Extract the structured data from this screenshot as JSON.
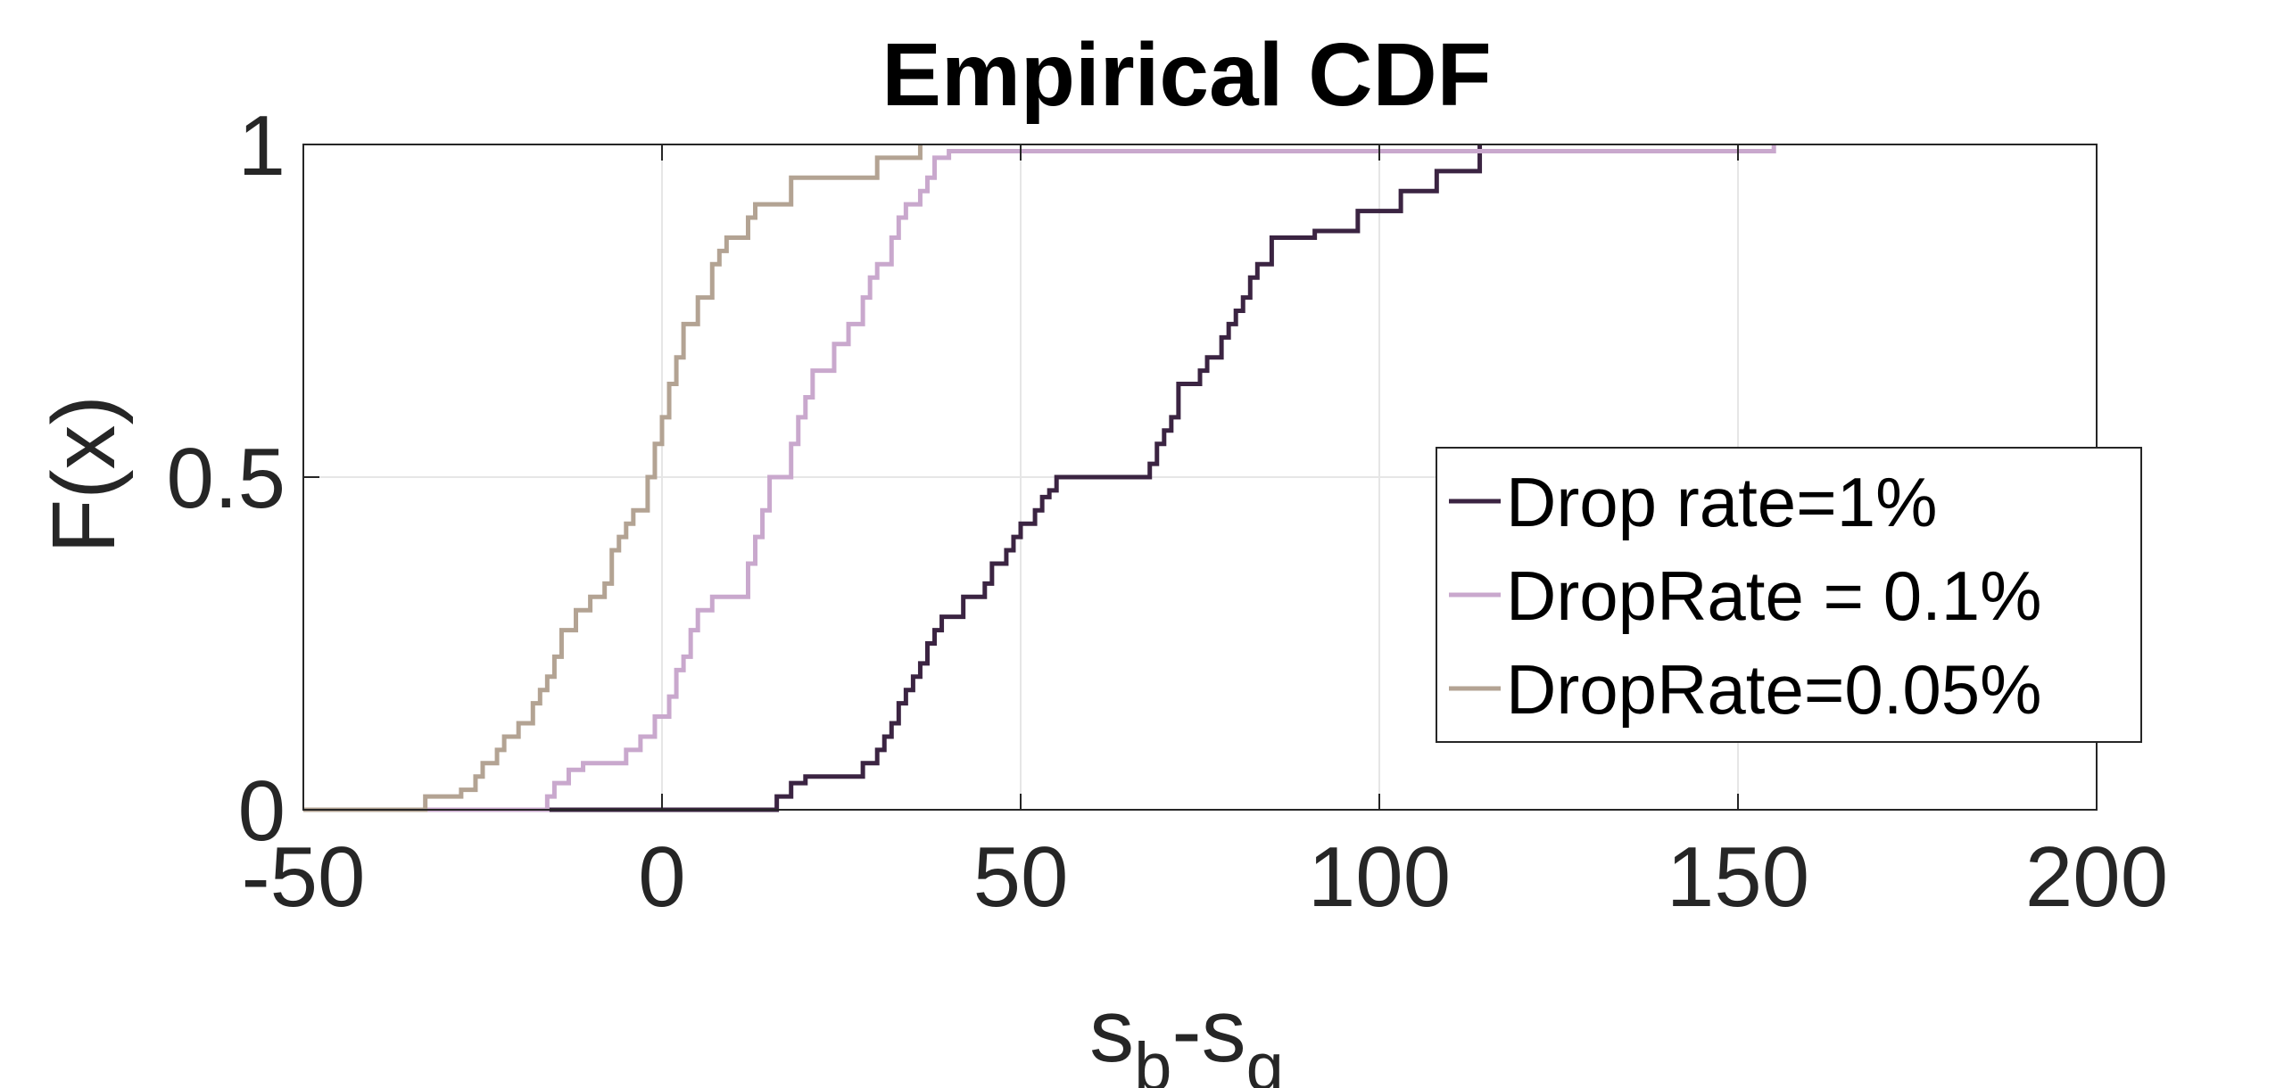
{
  "chart_data": {
    "type": "line",
    "title": "Empirical CDF",
    "xlabel": {
      "base1": "s",
      "sub1": "b",
      "sep": "-",
      "base2": "s",
      "sub2": "g"
    },
    "ylabel": "F(x)",
    "xlim": [
      -50,
      200
    ],
    "ylim": [
      0,
      1
    ],
    "xticks": [
      -50,
      0,
      50,
      100,
      150,
      200
    ],
    "xtick_labels": [
      "-50",
      "0",
      "50",
      "100",
      "150",
      "200"
    ],
    "yticks": [
      0,
      0.5,
      1
    ],
    "ytick_labels": [
      "0",
      "0.5",
      "1"
    ],
    "grid": true,
    "legend_position": "right",
    "series": [
      {
        "name": "Drop rate=1%",
        "color": "#3b2442",
        "x": [
          -50,
          16,
          18,
          20,
          28,
          30,
          31,
          32,
          33,
          34,
          35,
          36,
          37,
          38,
          39,
          42,
          45,
          46,
          48,
          49,
          50,
          52,
          53,
          54,
          55,
          68,
          69,
          70,
          71,
          72,
          75,
          76,
          78,
          79,
          80,
          81,
          82,
          83,
          85,
          91,
          97,
          103,
          108,
          114
        ],
        "y": [
          0,
          0.02,
          0.04,
          0.05,
          0.07,
          0.09,
          0.11,
          0.13,
          0.16,
          0.18,
          0.2,
          0.22,
          0.25,
          0.27,
          0.29,
          0.32,
          0.34,
          0.37,
          0.39,
          0.41,
          0.43,
          0.45,
          0.47,
          0.48,
          0.5,
          0.52,
          0.55,
          0.57,
          0.59,
          0.64,
          0.66,
          0.68,
          0.71,
          0.73,
          0.75,
          0.77,
          0.8,
          0.82,
          0.86,
          0.87,
          0.9,
          0.93,
          0.96,
          1.0
        ]
      },
      {
        "name": "DropRate = 0.1%",
        "color": "#c9a8cd",
        "x": [
          -50,
          -16,
          -15,
          -13,
          -11,
          -5,
          -3,
          -1,
          1,
          2,
          3,
          4,
          5,
          7,
          12,
          13,
          14,
          15,
          18,
          19,
          20,
          21,
          24,
          26,
          28,
          29,
          30,
          32,
          33,
          34,
          36,
          37,
          38,
          40,
          155
        ],
        "y": [
          0,
          0.02,
          0.04,
          0.06,
          0.07,
          0.09,
          0.11,
          0.14,
          0.17,
          0.21,
          0.23,
          0.27,
          0.3,
          0.32,
          0.37,
          0.41,
          0.45,
          0.5,
          0.55,
          0.59,
          0.62,
          0.66,
          0.7,
          0.73,
          0.77,
          0.8,
          0.82,
          0.86,
          0.89,
          0.91,
          0.93,
          0.95,
          0.98,
          0.99,
          1.0
        ]
      },
      {
        "name": "DropRate=0.05%",
        "color": "#b3a393",
        "x": [
          -50,
          -33,
          -28,
          -26,
          -25,
          -23,
          -22,
          -20,
          -18,
          -17,
          -16,
          -15,
          -14,
          -12,
          -10,
          -8,
          -7,
          -6,
          -5,
          -4,
          -2,
          -1,
          0,
          1,
          2,
          3,
          5,
          7,
          8,
          9,
          12,
          13,
          18,
          30,
          36
        ],
        "y": [
          0,
          0.02,
          0.03,
          0.05,
          0.07,
          0.09,
          0.11,
          0.13,
          0.16,
          0.18,
          0.2,
          0.23,
          0.27,
          0.3,
          0.32,
          0.34,
          0.39,
          0.41,
          0.43,
          0.45,
          0.5,
          0.55,
          0.59,
          0.64,
          0.68,
          0.73,
          0.77,
          0.82,
          0.84,
          0.86,
          0.89,
          0.91,
          0.95,
          0.98,
          1.0
        ]
      }
    ]
  }
}
